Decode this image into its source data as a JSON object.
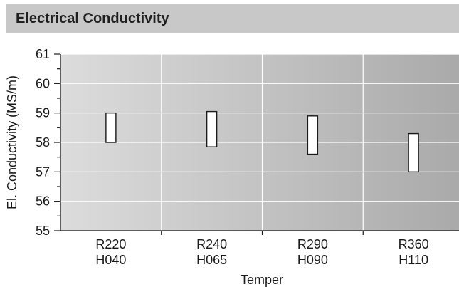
{
  "header": {
    "title": "Electrical Conductivity"
  },
  "chart_data": {
    "type": "range-bar",
    "title": "Electrical Conductivity",
    "xlabel": "Temper",
    "ylabel": "El. Conductivity (MS/m)",
    "ylim": [
      55,
      61
    ],
    "yticks": [
      55,
      56,
      57,
      58,
      59,
      60,
      61
    ],
    "grid": true,
    "categories": [
      {
        "line1": "R220",
        "line2": "H040",
        "low": 58.0,
        "high": 59.0
      },
      {
        "line1": "R240",
        "line2": "H065",
        "low": 57.85,
        "high": 59.05
      },
      {
        "line1": "R290",
        "line2": "H090",
        "low": 57.6,
        "high": 58.9
      },
      {
        "line1": "R360",
        "line2": "H110",
        "low": 57.0,
        "high": 58.3
      }
    ],
    "colors": {
      "bar_fill": "#ffffff",
      "bar_stroke": "#1a1a1a",
      "grid": "#ffffff",
      "header_bg": "#c8c8c8"
    }
  }
}
